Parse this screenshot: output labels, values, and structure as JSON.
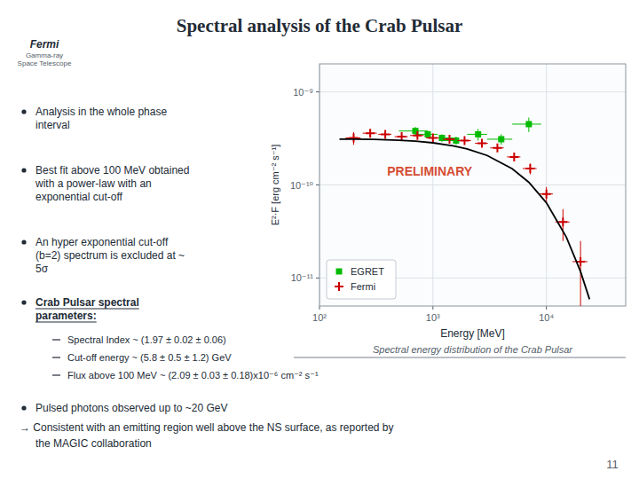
{
  "chart_data": {
    "type": "scatter",
    "title": "Spectral analysis of the Crab Pulsar",
    "x_label": "Energy [MeV]",
    "y_label": "E²·F  [erg cm⁻² s⁻¹]",
    "log": true,
    "grid": true,
    "legend": "lower left",
    "xlim": [
      100,
      50000
    ],
    "ylim": [
      5e-12,
      2e-09
    ],
    "xticks": [
      {
        "value": 100,
        "label": "10²"
      },
      {
        "value": 1000,
        "label": "10³"
      },
      {
        "value": 10000,
        "label": "10⁴"
      }
    ],
    "yticks": [
      {
        "value": 1e-11,
        "label": "10⁻¹¹"
      },
      {
        "value": 1e-10,
        "label": "10⁻¹⁰"
      },
      {
        "value": 1e-09,
        "label": "10⁻⁹"
      }
    ],
    "series": [
      {
        "name": "EGRET",
        "type": "scatter",
        "color": "#00bb00",
        "marker": "square",
        "x": [
          700,
          900,
          1200,
          1600,
          2500,
          4000,
          7000
        ],
        "values": [
          3.8e-10,
          3.5e-10,
          3.2e-10,
          3e-10,
          3.5e-10,
          3.1e-10,
          4.5e-10
        ],
        "x_err_lo": [
          200,
          200,
          300,
          400,
          500,
          1000,
          2000
        ],
        "x_err_hi": [
          200,
          200,
          300,
          400,
          500,
          1000,
          2000
        ],
        "y_err": [
          4e-11,
          3e-11,
          3e-11,
          3e-11,
          5e-11,
          4e-11,
          8e-11
        ]
      },
      {
        "name": "Fermi",
        "type": "scatter",
        "color": "#cc0000",
        "marker": "plus",
        "x": [
          200,
          280,
          380,
          530,
          730,
          1000,
          1400,
          1900,
          2700,
          3700,
          5200,
          7200,
          10000,
          14000,
          20000
        ],
        "values": [
          3.2e-10,
          3.6e-10,
          3.5e-10,
          3.3e-10,
          3.4e-10,
          3.2e-10,
          3.1e-10,
          3e-10,
          2.8e-10,
          2.5e-10,
          2e-10,
          1.5e-10,
          8e-11,
          4e-11,
          1.5e-11
        ],
        "x_err_lo": [
          30,
          40,
          50,
          70,
          100,
          130,
          180,
          260,
          350,
          500,
          700,
          1000,
          1400,
          2000,
          3000
        ],
        "x_err_hi": [
          30,
          40,
          50,
          70,
          100,
          130,
          180,
          260,
          350,
          500,
          700,
          1000,
          1400,
          2000,
          3000
        ],
        "y_err": [
          5e-11,
          3e-11,
          2e-11,
          2e-11,
          1.5e-11,
          1.2e-11,
          1.2e-11,
          1.2e-11,
          1.2e-11,
          1.5e-11,
          1.5e-11,
          2e-11,
          1.5e-11,
          1.5e-11,
          1e-11
        ]
      },
      {
        "type": "line",
        "color": "#000000",
        "line_style": "solid",
        "x": [
          150,
          200,
          300,
          500,
          700,
          1000,
          1500,
          2000,
          3000,
          5000,
          7000,
          10000,
          15000,
          20000,
          24000
        ],
        "values": [
          3.1017e-10,
          3.1017e-10,
          3.086e-10,
          3.0274e-10,
          2.9545e-10,
          2.8357e-10,
          2.6334e-10,
          2.4368e-10,
          2.076e-10,
          1.4932e-10,
          1.0684e-10,
          6.4383e-11,
          2.752e-11,
          1.1722e-11,
          5.914e-12
        ]
      }
    ],
    "annotations": [
      {
        "text": "Fermi"
      },
      {
        "text": "Gamma-ray\nSpace Telescope"
      },
      {
        "text": "Analysis in the whole phase\ninterval"
      },
      {
        "text": "Best fit above 100 MeV obtained\nwith a power-law with an\nexponential cut-off"
      },
      {
        "text": "An hyper exponential cut-off\n(b=2) spectrum is excluded at ~\n5σ"
      },
      {
        "text": "Crab Pulsar spectral\nparameters:"
      },
      {
        "text": "Spectral Index ~ (1.97 ± 0.02 ± 0.06)"
      },
      {
        "text": "Cut-off energy ~ (5.8 ± 0.5 ± 1.2) GeV"
      },
      {
        "text": "Flux above 100 MeV ~ (2.09 ± 0.03 ± 0.18)x10⁻⁶ cm⁻² s⁻¹"
      },
      {
        "text": "Pulsed photons observed up to ~20 GeV"
      },
      {
        "text": "→ Consistent with an emitting region well above the NS surface, as reported by"
      },
      {
        "text": "the MAGIC collaboration"
      },
      {
        "text": "Spectral energy distribution of the Crab Pulsar"
      },
      {
        "text": "11"
      },
      {
        "text": "PRELIMINARY",
        "color": "#cc2200"
      }
    ]
  }
}
